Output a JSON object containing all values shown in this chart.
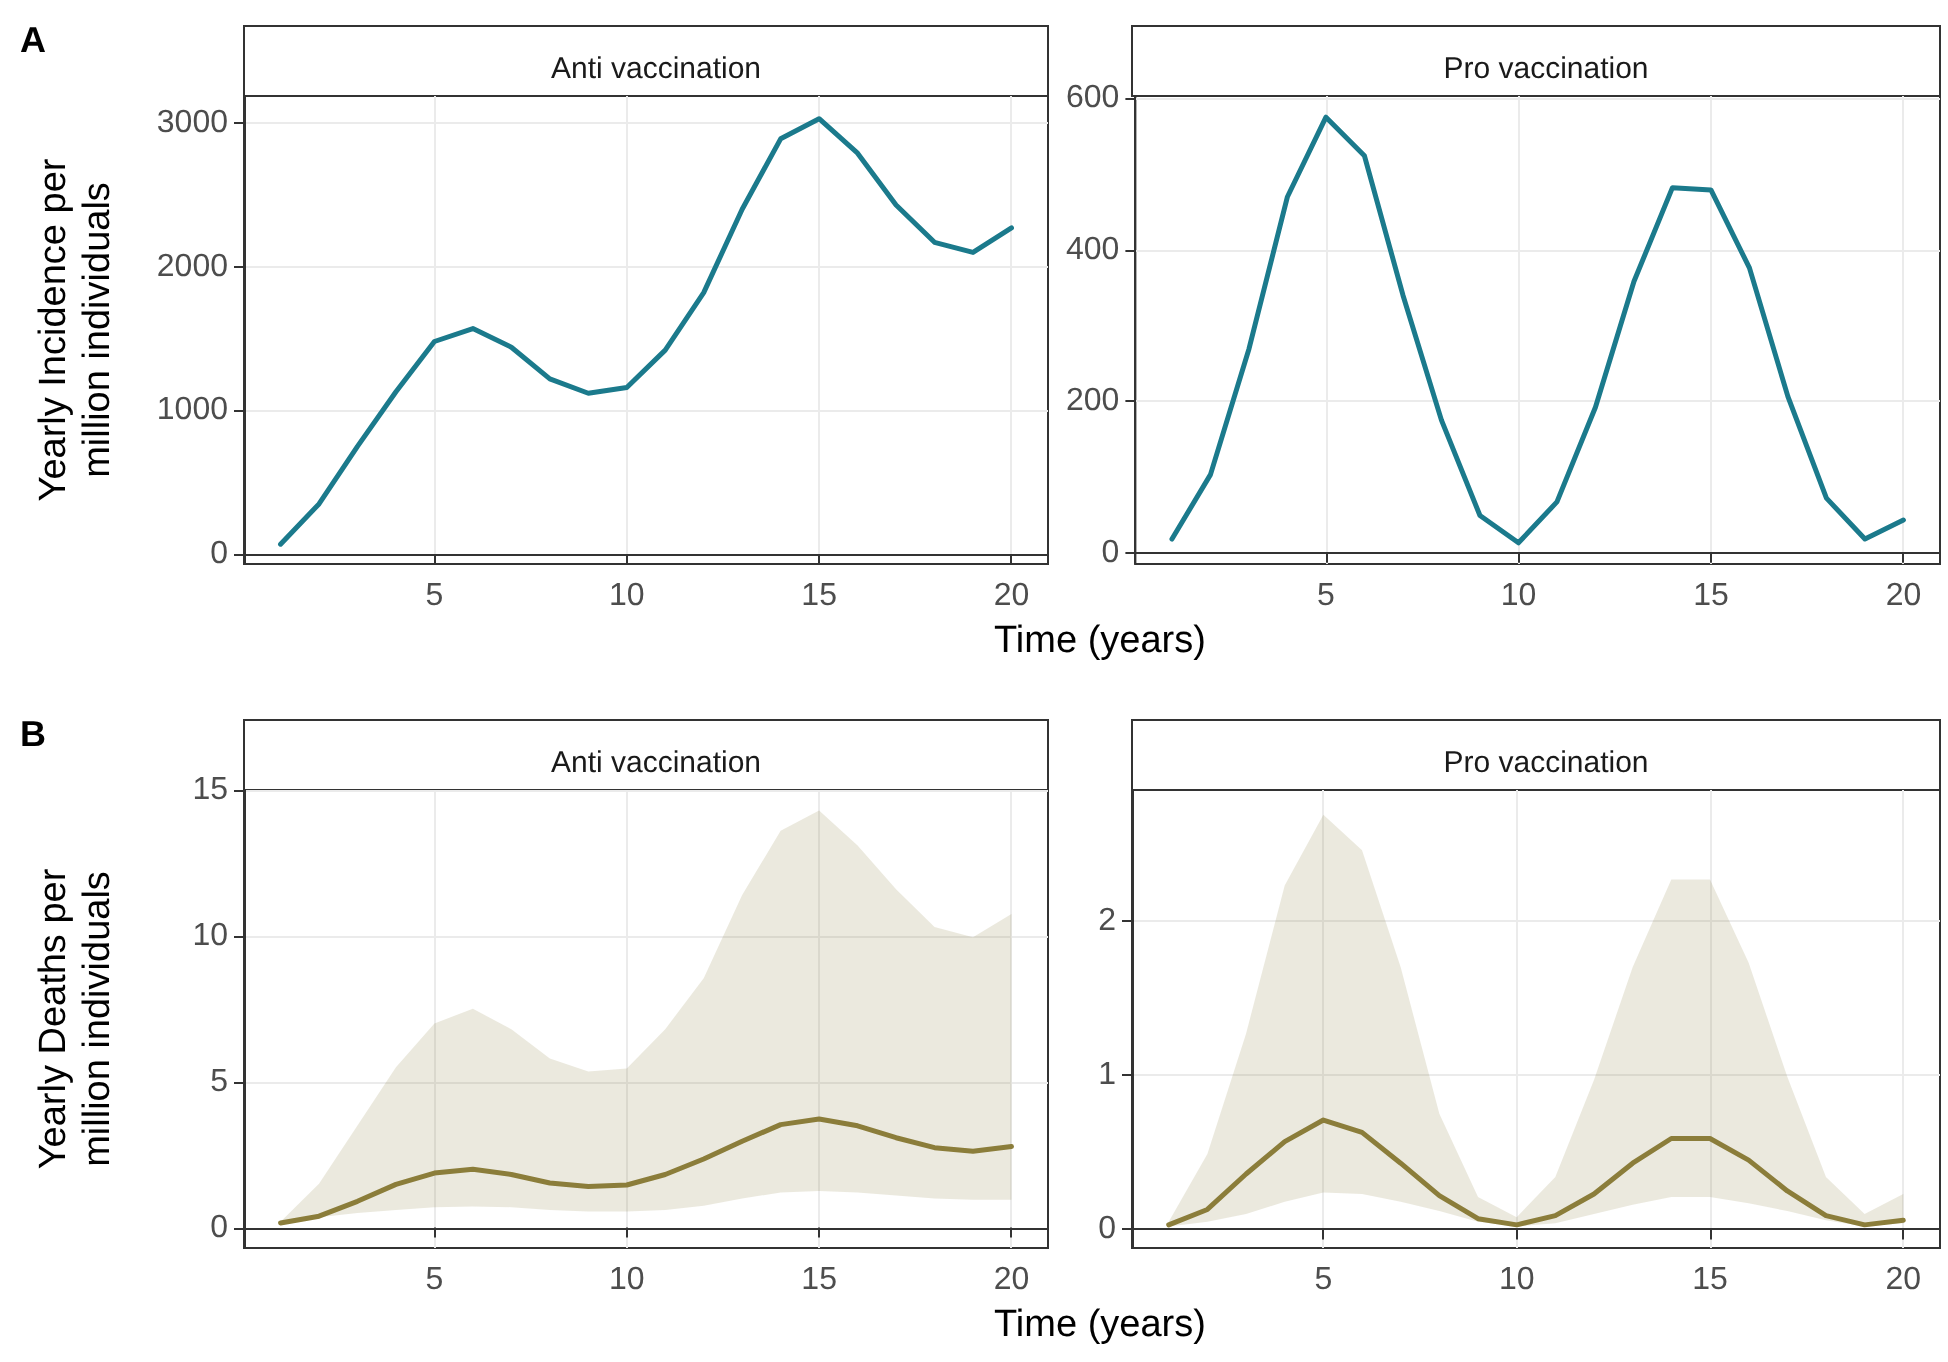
{
  "chart_data": [
    {
      "type": "line",
      "title": "Anti vaccination",
      "xlabel": "Time (years)",
      "ylabel": "Yearly Incidence per million individuals",
      "annotations": [
        "A"
      ],
      "x": [
        1,
        2,
        3,
        4,
        5,
        6,
        7,
        8,
        9,
        10,
        11,
        12,
        13,
        14,
        15,
        16,
        17,
        18,
        19,
        20
      ],
      "xlim": [
        0.05,
        20.95
      ],
      "xticks": [
        5,
        10,
        15,
        20
      ],
      "ylim": [
        -68,
        3188
      ],
      "yticks": [
        0,
        1000,
        2000,
        3000
      ],
      "grid": true,
      "series": [
        {
          "color": "#1b7a8c",
          "values": [
            70,
            350,
            750,
            1130,
            1480,
            1570,
            1440,
            1220,
            1120,
            1160,
            1420,
            1820,
            2400,
            2890,
            3030,
            2790,
            2430,
            2170,
            2100,
            2270
          ]
        }
      ]
    },
    {
      "type": "line",
      "title": "Pro vaccination",
      "x": [
        1,
        2,
        3,
        4,
        5,
        6,
        7,
        8,
        9,
        10,
        11,
        12,
        13,
        14,
        15,
        16,
        17,
        18,
        19,
        20
      ],
      "xlim": [
        0.05,
        20.95
      ],
      "xticks": [
        5,
        10,
        15,
        20
      ],
      "ylim": [
        -15,
        603
      ],
      "yticks": [
        0,
        200,
        400,
        600
      ],
      "grid": true,
      "series": [
        {
          "color": "#1b7a8c",
          "values": [
            18,
            103,
            269,
            470,
            575,
            524,
            340,
            175,
            49,
            13,
            67,
            192,
            358,
            482,
            479,
            376,
            206,
            72,
            18,
            43
          ]
        }
      ]
    },
    {
      "type": "line",
      "title": "Anti vaccination",
      "xlabel": "Time (years)",
      "ylabel": "Yearly Deaths per million individuals",
      "annotations": [
        "B"
      ],
      "x": [
        1,
        2,
        3,
        4,
        5,
        6,
        7,
        8,
        9,
        10,
        11,
        12,
        13,
        14,
        15,
        16,
        17,
        18,
        19,
        20
      ],
      "xlim": [
        0.05,
        20.95
      ],
      "xticks": [
        5,
        10,
        15,
        20
      ],
      "ylim": [
        -0.7,
        15.0
      ],
      "yticks": [
        0,
        5,
        10,
        15
      ],
      "grid": true,
      "series": [
        {
          "color": "#8b7d3a",
          "values": [
            0.16,
            0.39,
            0.9,
            1.48,
            1.87,
            2.0,
            1.82,
            1.53,
            1.41,
            1.46,
            1.82,
            2.35,
            2.96,
            3.53,
            3.72,
            3.49,
            3.08,
            2.74,
            2.62,
            2.78
          ],
          "lower": [
            0.1,
            0.35,
            0.5,
            0.6,
            0.7,
            0.72,
            0.7,
            0.6,
            0.55,
            0.55,
            0.6,
            0.75,
            1.0,
            1.2,
            1.25,
            1.2,
            1.1,
            1.0,
            0.95,
            0.95
          ],
          "upper": [
            0.2,
            1.5,
            3.5,
            5.5,
            7.0,
            7.5,
            6.8,
            5.8,
            5.35,
            5.45,
            6.8,
            8.55,
            11.4,
            13.6,
            14.3,
            13.1,
            11.6,
            10.3,
            9.95,
            10.75
          ]
        }
      ]
    },
    {
      "type": "line",
      "title": "Pro vaccination",
      "x": [
        1,
        2,
        3,
        4,
        5,
        6,
        7,
        8,
        9,
        10,
        11,
        12,
        13,
        14,
        15,
        16,
        17,
        18,
        19,
        20
      ],
      "xlim": [
        0.05,
        20.95
      ],
      "xticks": [
        5,
        10,
        15,
        20
      ],
      "ylim": [
        -0.12,
        2.85
      ],
      "yticks": [
        0,
        1,
        2
      ],
      "grid": true,
      "series": [
        {
          "color": "#8b7d3a",
          "values": [
            0.03,
            0.13,
            0.36,
            0.57,
            0.71,
            0.63,
            0.43,
            0.22,
            0.07,
            0.03,
            0.09,
            0.23,
            0.43,
            0.59,
            0.59,
            0.45,
            0.25,
            0.09,
            0.03,
            0.06
          ],
          "lower": [
            0.02,
            0.05,
            0.1,
            0.18,
            0.24,
            0.23,
            0.18,
            0.12,
            0.05,
            0.02,
            0.04,
            0.1,
            0.16,
            0.21,
            0.21,
            0.17,
            0.12,
            0.06,
            0.02,
            0.04
          ],
          "upper": [
            0.05,
            0.49,
            1.27,
            2.23,
            2.69,
            2.46,
            1.7,
            0.75,
            0.21,
            0.08,
            0.34,
            0.97,
            1.7,
            2.27,
            2.27,
            1.73,
            0.99,
            0.34,
            0.1,
            0.23
          ]
        }
      ]
    }
  ]
}
